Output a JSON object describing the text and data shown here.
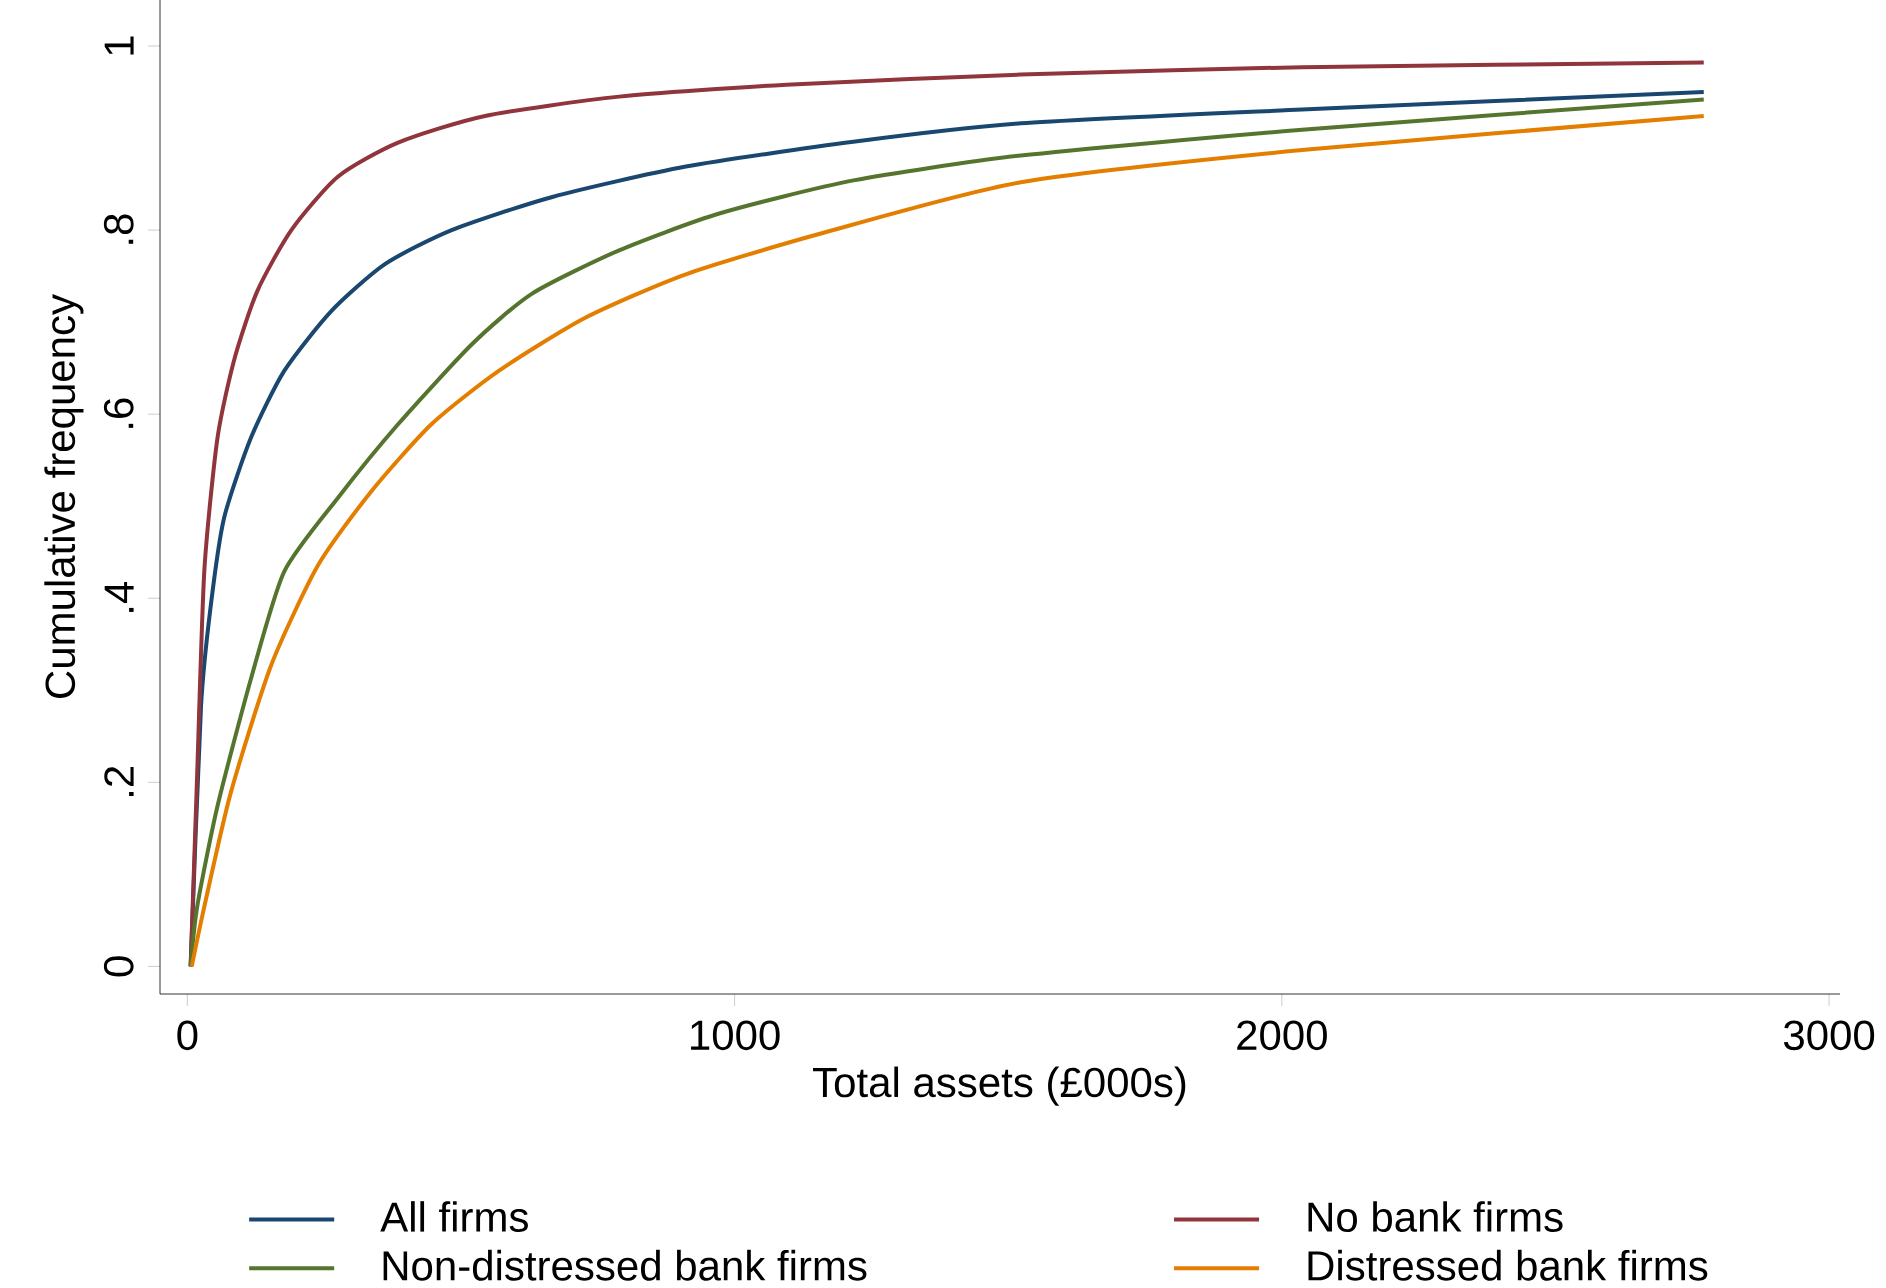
{
  "chart_data": {
    "type": "line",
    "xlabel": "Total assets (£000s)",
    "ylabel": "Cumulative frequency",
    "xlim": [
      -50,
      3020
    ],
    "ylim": [
      -0.03,
      1.05
    ],
    "xticks": [
      0,
      1000,
      2000,
      3000
    ],
    "yticks": [
      0,
      {
        "value": 0.2,
        "label": ".2"
      },
      {
        "value": 0.4,
        "label": ".4"
      },
      {
        "value": 0.6,
        "label": ".6"
      },
      {
        "value": 0.8,
        "label": ".8"
      },
      1
    ],
    "grid": false,
    "legend": "bottom",
    "marker": "none",
    "line_style": "solid",
    "series": [
      {
        "name": "All firms",
        "color": "#1a476f",
        "x": [
          6,
          25,
          43,
          67,
          116,
          177,
          263,
          361,
          483,
          667,
          911,
          1217,
          1523,
          2037,
          2771
        ],
        "values": [
          0,
          0.283,
          0.393,
          0.487,
          0.574,
          0.647,
          0.712,
          0.763,
          0.8,
          0.836,
          0.869,
          0.896,
          0.916,
          0.931,
          0.95
        ]
      },
      {
        "name": "No bank firms",
        "color": "#90353b",
        "x": [
          6,
          18,
          31,
          55,
          86,
          128,
          190,
          275,
          385,
          544,
          789,
          1095,
          1523,
          2037,
          2771
        ],
        "values": [
          0,
          0.21,
          0.43,
          0.574,
          0.66,
          0.734,
          0.8,
          0.858,
          0.895,
          0.924,
          0.945,
          0.958,
          0.969,
          0.977,
          0.982
        ]
      },
      {
        "name": "Non-distressed bank firms",
        "color": "#55752f",
        "x": [
          6,
          18,
          55,
          116,
          177,
          275,
          385,
          520,
          630,
          789,
          972,
          1217,
          1523,
          2037,
          2771
        ],
        "values": [
          0,
          0.065,
          0.174,
          0.312,
          0.429,
          0.509,
          0.589,
          0.676,
          0.731,
          0.778,
          0.818,
          0.854,
          0.881,
          0.909,
          0.942
        ]
      },
      {
        "name": "Distressed bank firms",
        "color": "#e37e00",
        "x": [
          8,
          31,
          79,
          153,
          239,
          336,
          446,
          569,
          728,
          911,
          1156,
          1523,
          2037,
          2771
        ],
        "values": [
          0,
          0.065,
          0.188,
          0.327,
          0.436,
          0.516,
          0.589,
          0.647,
          0.705,
          0.752,
          0.796,
          0.852,
          0.887,
          0.924
        ]
      }
    ]
  }
}
